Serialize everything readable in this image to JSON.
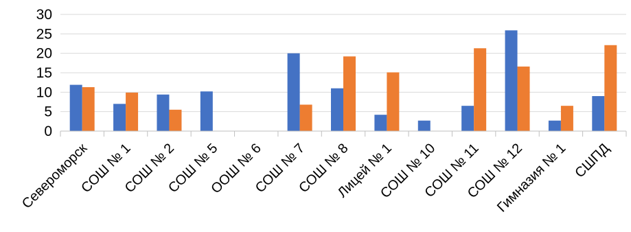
{
  "chart_data": {
    "type": "bar",
    "title": "",
    "xlabel": "",
    "ylabel": "",
    "ylim": [
      0,
      30
    ],
    "yticks": [
      0,
      5,
      10,
      15,
      20,
      25,
      30
    ],
    "grid": "horizontal",
    "legend": "none",
    "categories": [
      "Североморск",
      "СОШ № 1",
      "СОШ № 2",
      "СОШ № 5",
      "ООШ № 6",
      "СОШ № 7",
      "СОШ № 8",
      "Лицей № 1",
      "СОШ № 10",
      "СОШ № 11",
      "СОШ № 12",
      "Гимназия № 1",
      "СШПД"
    ],
    "series": [
      {
        "color": "#4472C4",
        "values": [
          11.9,
          7.0,
          9.4,
          10.2,
          0,
          20.0,
          11.0,
          4.2,
          2.7,
          6.5,
          25.9,
          2.7,
          9.0
        ]
      },
      {
        "color": "#ED7D31",
        "values": [
          11.3,
          9.9,
          5.5,
          0,
          0,
          6.8,
          19.2,
          15.1,
          0,
          21.3,
          16.6,
          6.5,
          22.1
        ]
      }
    ]
  }
}
